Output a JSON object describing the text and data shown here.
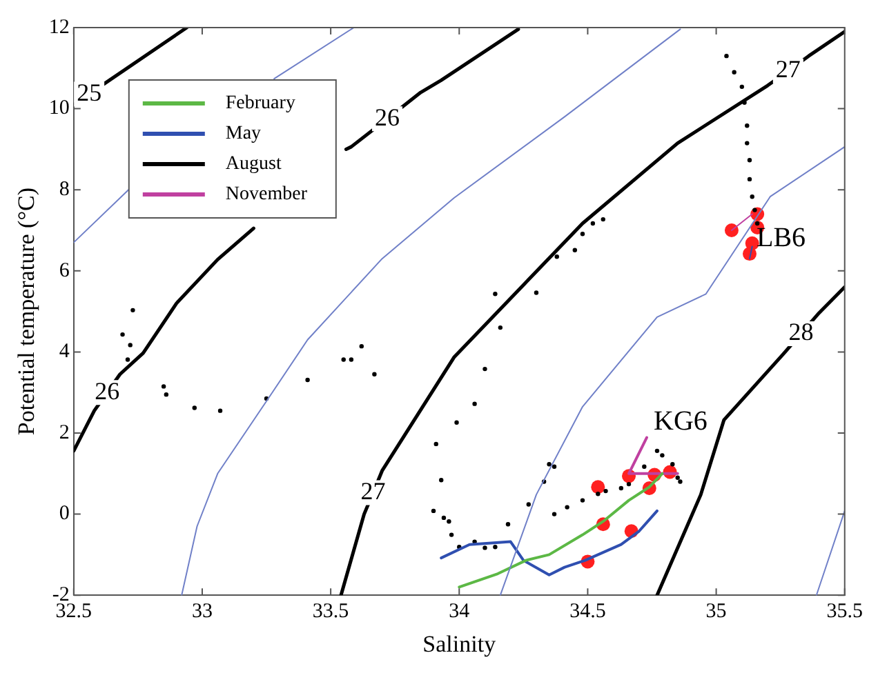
{
  "chart_data": {
    "type": "line",
    "xlabel": "Salinity",
    "ylabel": "Potential temperature (°C)",
    "xlim": [
      32.5,
      35.5
    ],
    "ylim": [
      -2,
      12
    ],
    "xticks": [
      32.5,
      33,
      33.5,
      34,
      34.5,
      35,
      35.5
    ],
    "yticks": [
      -2,
      0,
      2,
      4,
      6,
      8,
      10,
      12
    ],
    "grid": false,
    "legend": "top left",
    "series": [
      {
        "type": "line",
        "color": "#000000",
        "x": [
          32.5,
          32.56,
          32.94
        ],
        "values": [
          10.1,
          10.36,
          12
        ]
      },
      {
        "type": "line",
        "color": "#7080c8",
        "x": [
          32.5,
          32.73
        ],
        "values": [
          6.7,
          8.1
        ]
      },
      {
        "type": "line",
        "color": "#7080c8",
        "x": [
          33.28,
          33.59
        ],
        "values": [
          10.74,
          12
        ]
      },
      {
        "type": "line",
        "color": "#000000",
        "x": [
          32.5,
          32.58,
          32.63,
          32.68,
          32.77,
          32.9,
          33.06,
          33.2
        ],
        "values": [
          1.56,
          2.55,
          3.0,
          3.45,
          3.97,
          5.2,
          6.28,
          7.05
        ]
      },
      {
        "type": "line",
        "color": "#000000",
        "x": [
          33.56,
          33.58,
          33.72,
          33.85,
          33.93,
          34.23
        ],
        "values": [
          9.0,
          9.06,
          9.75,
          10.4,
          10.7,
          11.96
        ]
      },
      {
        "type": "line",
        "color": "#7080c8",
        "x": [
          32.92,
          32.98,
          33.06,
          33.26,
          33.41,
          33.7,
          33.98,
          34.41,
          34.86
        ],
        "values": [
          -2,
          -0.3,
          1.0,
          2.88,
          4.3,
          6.3,
          7.8,
          9.8,
          11.96
        ]
      },
      {
        "type": "line",
        "color": "#000000",
        "x": [
          33.54,
          33.63,
          33.665,
          33.7,
          33.98,
          34.48,
          34.85,
          35.2,
          35.28,
          35.36,
          35.5
        ],
        "values": [
          -2,
          0.0,
          0.53,
          1.07,
          3.87,
          7.17,
          9.15,
          10.57,
          10.93,
          11.3,
          11.9
        ]
      },
      {
        "type": "line",
        "color": "#7080c8",
        "x": [
          34.16,
          34.3,
          34.48,
          34.77,
          34.96,
          35.21,
          35.5
        ],
        "values": [
          -2,
          0.48,
          2.65,
          4.86,
          5.43,
          7.83,
          9.06
        ]
      },
      {
        "type": "line",
        "color": "#000000",
        "x": [
          34.77,
          34.94,
          35.03,
          35.26,
          35.33,
          35.4,
          35.5
        ],
        "values": [
          -2,
          0.48,
          2.32,
          3.94,
          4.45,
          4.96,
          5.6
        ]
      },
      {
        "type": "line",
        "color": "#7080c8",
        "x": [
          35.39,
          35.5
        ],
        "values": [
          -2,
          0.08
        ]
      },
      {
        "name": "February",
        "type": "line",
        "color": "#5cb845",
        "x": [
          34.0,
          34.15,
          34.26,
          34.35,
          34.48,
          34.56,
          34.66,
          34.74,
          34.79
        ],
        "values": [
          -1.8,
          -1.47,
          -1.14,
          -1.0,
          -0.51,
          -0.18,
          0.34,
          0.67,
          1.0
        ]
      },
      {
        "name": "May",
        "type": "line",
        "color": "#2f4fb0",
        "x": [
          33.93,
          34.04,
          34.2,
          34.25,
          34.35,
          34.41,
          34.49,
          34.63,
          34.7,
          34.77
        ],
        "values": [
          -1.08,
          -0.75,
          -0.68,
          -1.14,
          -1.5,
          -1.31,
          -1.14,
          -0.75,
          -0.42,
          0.08
        ]
      },
      {
        "name": "August",
        "type": "scatter",
        "marker": "circle",
        "color": "#000000",
        "x": [
          32.69,
          32.72,
          32.71,
          32.73,
          32.85,
          32.86,
          32.97,
          33.07,
          33.25,
          33.41,
          33.55,
          33.58,
          33.62,
          33.67,
          33.91,
          33.93,
          33.9,
          33.94,
          33.96,
          33.97,
          34.0,
          34.06,
          34.1,
          34.14,
          34.19,
          34.27,
          34.33,
          34.35,
          34.37,
          34.37,
          34.42,
          34.48,
          34.54,
          34.57,
          34.63,
          34.66,
          34.72,
          34.77,
          34.79,
          34.83,
          34.85,
          34.86,
          33.99,
          34.06,
          34.1,
          34.14,
          34.16,
          34.3,
          34.38,
          34.45,
          34.48,
          34.52,
          34.56,
          35.04,
          35.07,
          35.1,
          35.11,
          35.12,
          35.12,
          35.13,
          35.13,
          35.14,
          35.15,
          35.16
        ],
        "values": [
          4.43,
          4.17,
          3.81,
          5.03,
          3.15,
          2.95,
          2.62,
          2.55,
          2.85,
          3.31,
          3.81,
          3.81,
          4.14,
          3.45,
          1.73,
          0.84,
          0.08,
          -0.09,
          -0.18,
          -0.51,
          -0.81,
          -0.68,
          -0.83,
          -0.81,
          -0.25,
          0.24,
          0.8,
          1.23,
          1.17,
          0.0,
          0.17,
          0.34,
          0.5,
          0.57,
          0.64,
          0.74,
          1.17,
          1.56,
          1.45,
          1.23,
          0.9,
          0.8,
          2.26,
          2.72,
          3.58,
          5.43,
          4.6,
          5.46,
          6.35,
          6.51,
          6.91,
          7.17,
          7.27,
          11.3,
          10.9,
          10.54,
          10.15,
          9.58,
          9.15,
          8.73,
          8.26,
          7.83,
          7.5,
          7.17
        ]
      },
      {
        "name": "November",
        "type": "line",
        "color": "#c040a0",
        "x": [
          34.73,
          34.66,
          34.75,
          34.85
        ],
        "values": [
          1.89,
          1.0,
          1.0,
          1.0
        ]
      },
      {
        "type": "line",
        "color": "#c040a0",
        "x": [
          35.06,
          35.14
        ],
        "values": [
          7.0,
          7.4
        ]
      },
      {
        "type": "line",
        "color": "#2f4fb0",
        "x": [
          35.13,
          35.14
        ],
        "values": [
          6.3,
          6.6
        ]
      },
      {
        "type": "scatter",
        "marker": "circle",
        "color": "#ff2020",
        "x": [
          34.54,
          34.66,
          34.76,
          34.82,
          34.74,
          34.56,
          34.67,
          34.5,
          35.16,
          35.06,
          35.16,
          35.14,
          35.13
        ],
        "values": [
          0.67,
          0.94,
          0.97,
          1.04,
          0.64,
          -0.25,
          -0.42,
          -1.17,
          7.4,
          7.0,
          7.07,
          6.68,
          6.42
        ]
      }
    ],
    "annotations": [
      {
        "text": "25",
        "x": 32.56,
        "y": 10.36
      },
      {
        "text": "26",
        "x": 32.63,
        "y": 3.0
      },
      {
        "text": "26",
        "x": 33.72,
        "y": 9.75
      },
      {
        "text": "27",
        "x": 33.665,
        "y": 0.53
      },
      {
        "text": "27",
        "x": 35.28,
        "y": 10.93
      },
      {
        "text": "28",
        "x": 35.33,
        "y": 4.45
      },
      {
        "text": "LB6",
        "x": 35.13,
        "y": 6.42
      },
      {
        "text": "KG6",
        "x": 34.73,
        "y": 1.89
      }
    ]
  }
}
